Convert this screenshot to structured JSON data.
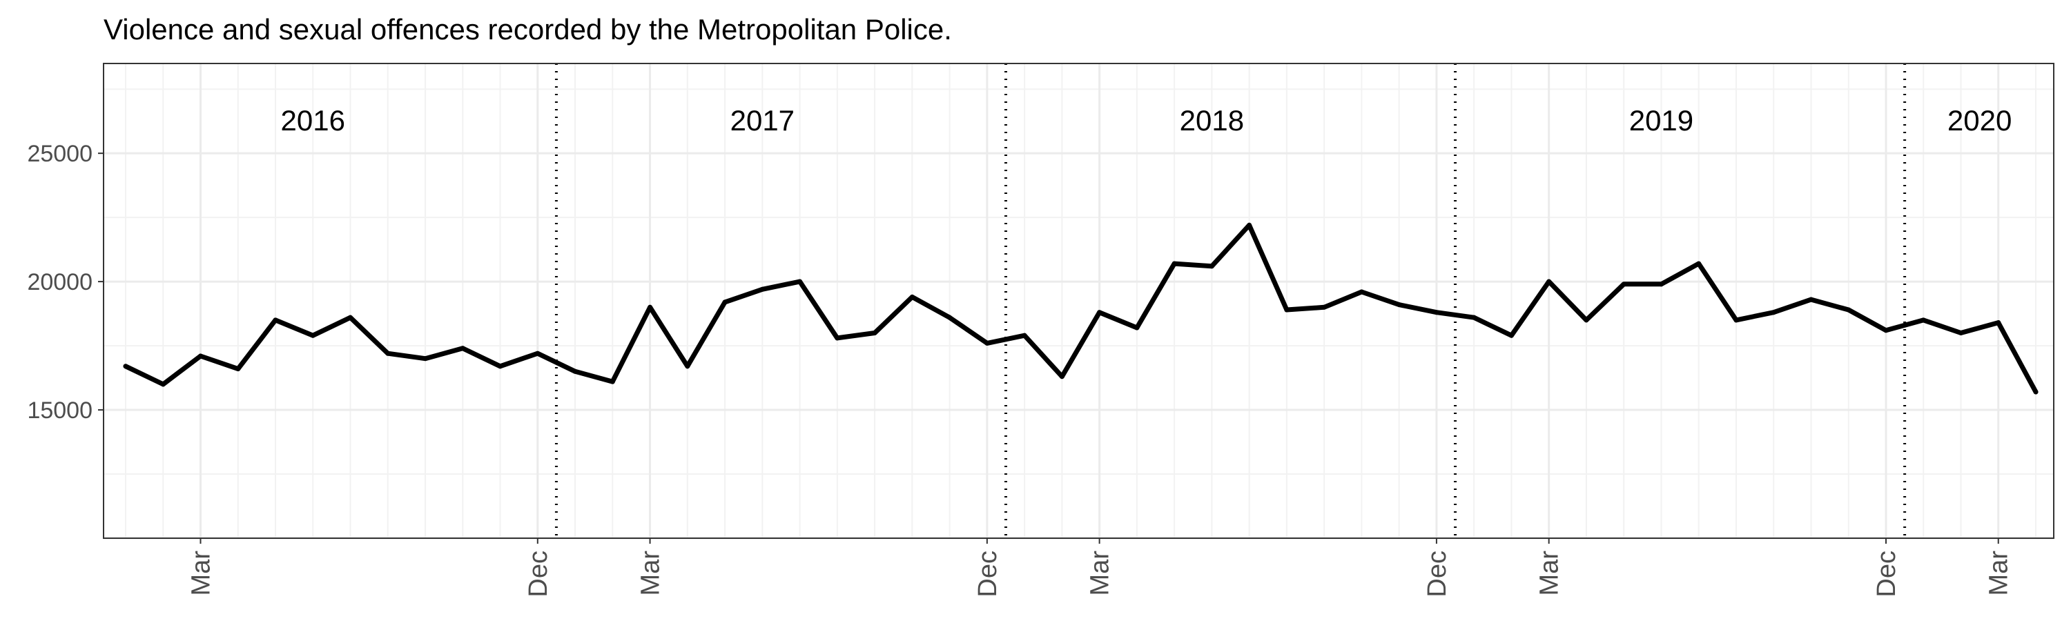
{
  "chart_data": {
    "type": "line",
    "title": "Violence and sexual offences recorded by the Metropolitan Police.",
    "xlabel": "",
    "ylabel": "",
    "ylim": [
      10000,
      28500
    ],
    "y_ticks": [
      15000,
      20000,
      25000
    ],
    "y_tick_labels": [
      "15000",
      "20000",
      "25000"
    ],
    "x_tick_labels": [
      "Mar",
      "Dec",
      "Mar",
      "Dec",
      "Mar",
      "Dec",
      "Mar",
      "Dec",
      "Mar"
    ],
    "x_tick_months": [
      2,
      11,
      14,
      23,
      26,
      35,
      38,
      47,
      50
    ],
    "year_boundaries": [
      11.5,
      23.5,
      35.5,
      47.5
    ],
    "year_labels": [
      {
        "text": "2016",
        "month": 5
      },
      {
        "text": "2017",
        "month": 17
      },
      {
        "text": "2018",
        "month": 29
      },
      {
        "text": "2019",
        "month": 41
      },
      {
        "text": "2020",
        "month": 49.5
      }
    ],
    "year_label_value": 26300,
    "series": [
      {
        "name": "Offences",
        "color": "#000000",
        "start": "2016-01",
        "values": [
          16700,
          16000,
          17100,
          16600,
          18500,
          17900,
          18600,
          17200,
          17000,
          17400,
          16700,
          17200,
          16500,
          16100,
          19000,
          16700,
          19200,
          19700,
          20000,
          17800,
          18000,
          19400,
          18600,
          17600,
          17900,
          16300,
          18800,
          18200,
          20700,
          20600,
          22200,
          18900,
          19000,
          19600,
          19100,
          18800,
          18600,
          17900,
          20000,
          18500,
          19900,
          19900,
          20700,
          18500,
          18800,
          19300,
          18900,
          18100,
          18500,
          18000,
          18400,
          15700
        ]
      }
    ]
  }
}
